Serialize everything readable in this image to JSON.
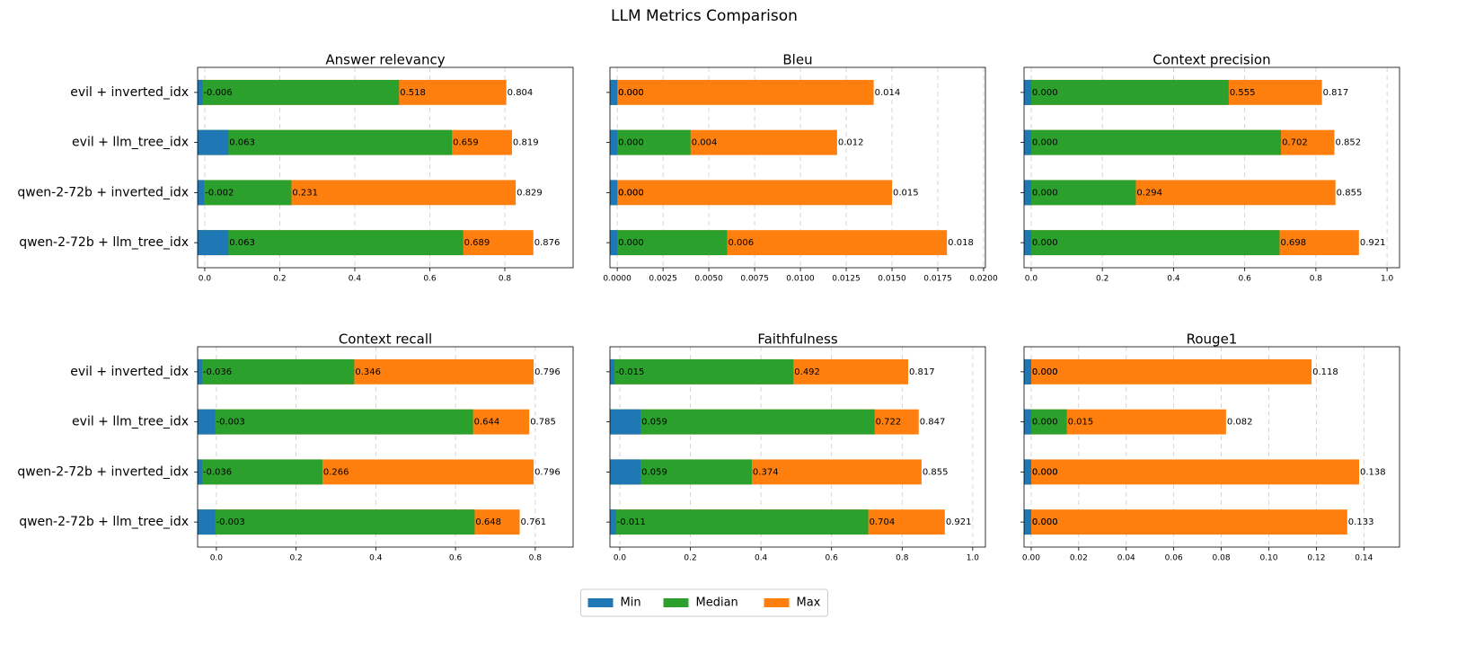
{
  "chart_data": {
    "type": "bar",
    "orientation": "horizontal",
    "title": "LLM Metrics Comparison",
    "categories": [
      "evil + inverted_idx",
      "evil + llm_tree_idx",
      "qwen-2-72b + inverted_idx",
      "qwen-2-72b + llm_tree_idx"
    ],
    "series": [
      {
        "name": "Min",
        "color": "#1f77b4"
      },
      {
        "name": "Median",
        "color": "#2ca02c"
      },
      {
        "name": "Max",
        "color": "#ff7f0e"
      }
    ],
    "legend": "lower center",
    "grid": true,
    "panels": [
      {
        "title": "Answer relevancy",
        "xlim": [
          -0.019,
          0.982
        ],
        "xticks": [
          {
            "value": 0,
            "label": "0.0"
          },
          0.2,
          0.4,
          0.6,
          0.8
        ],
        "series": [
          {
            "values": [
              -0.006,
              0.063,
              -0.002,
              0.063
            ]
          },
          {
            "values": [
              0.518,
              0.659,
              0.231,
              0.689
            ]
          },
          {
            "values": [
              0.804,
              0.819,
              0.829,
              0.876
            ]
          }
        ]
      },
      {
        "title": "Bleu",
        "xlim": [
          -0.0004,
          0.0201
        ],
        "xticks": [
          {
            "value": 0,
            "label": "0.0000"
          },
          {
            "value": 0.0025,
            "label": "0.0025"
          },
          {
            "value": 0.005,
            "label": "0.0050"
          },
          {
            "value": 0.0075,
            "label": "0.0075"
          },
          {
            "value": 0.01,
            "label": "0.0100"
          },
          {
            "value": 0.0125,
            "label": "0.0125"
          },
          {
            "value": 0.015,
            "label": "0.0150"
          },
          {
            "value": 0.0175,
            "label": "0.0175"
          },
          {
            "value": 0.02,
            "label": "0.0200"
          }
        ],
        "series": [
          {
            "values": [
              0,
              0,
              0,
              0
            ],
            "value_labels": [
              "0.000",
              "0.000",
              "0.000",
              "0.000"
            ]
          },
          {
            "values": [
              0,
              0.004,
              0,
              0.006
            ],
            "value_labels": [
              "0.000",
              "0.004",
              "0.000",
              "0.006"
            ]
          },
          {
            "values": [
              0.014,
              0.012,
              0.015,
              0.018
            ]
          }
        ]
      },
      {
        "title": "Context precision",
        "xlim": [
          -0.02,
          1.035
        ],
        "xticks": [
          {
            "value": 0,
            "label": "0.0"
          },
          0.2,
          0.4,
          0.6,
          0.8,
          {
            "value": 1,
            "label": "1.0"
          }
        ],
        "series": [
          {
            "values": [
              0,
              0,
              0,
              0
            ],
            "value_labels": [
              "0.000",
              "0.000",
              "0.000",
              "0.000"
            ]
          },
          {
            "values": [
              0.555,
              0.702,
              0.294,
              0.698
            ]
          },
          {
            "values": [
              0.817,
              0.852,
              0.855,
              0.921
            ]
          }
        ]
      },
      {
        "title": "Context recall",
        "xlim": [
          -0.047,
          0.895
        ],
        "xticks": [
          {
            "value": 0,
            "label": "0.0"
          },
          0.2,
          0.4,
          0.6,
          0.8
        ],
        "series": [
          {
            "values": [
              -0.036,
              -0.003,
              -0.036,
              -0.003
            ]
          },
          {
            "values": [
              0.346,
              0.644,
              0.266,
              0.648
            ]
          },
          {
            "values": [
              0.796,
              0.785,
              0.796,
              0.761
            ]
          }
        ]
      },
      {
        "title": "Faithfulness",
        "xlim": [
          -0.028,
          1.036
        ],
        "xticks": [
          {
            "value": 0,
            "label": "0.0"
          },
          0.2,
          0.4,
          0.6,
          0.8,
          {
            "value": 1,
            "label": "1.0"
          }
        ],
        "series": [
          {
            "values": [
              -0.015,
              0.059,
              0.059,
              -0.011
            ]
          },
          {
            "values": [
              0.492,
              0.722,
              0.374,
              0.704
            ]
          },
          {
            "values": [
              0.817,
              0.847,
              0.855,
              0.921
            ]
          }
        ]
      },
      {
        "title": "Rouge1",
        "xlim": [
          -0.003,
          0.155
        ],
        "xticks": [
          {
            "value": 0,
            "label": "0.00"
          },
          0.02,
          0.04,
          0.06,
          0.08,
          {
            "value": 0.1,
            "label": "0.10"
          },
          0.12,
          0.14
        ],
        "series": [
          {
            "values": [
              0,
              0,
              0,
              0
            ],
            "value_labels": [
              "0.000",
              "0.000",
              "0.000",
              "0.000"
            ]
          },
          {
            "values": [
              0,
              0.015,
              0,
              0
            ],
            "value_labels": [
              "0.000",
              "0.015",
              "0.000",
              "0.000"
            ]
          },
          {
            "values": [
              0.118,
              0.082,
              0.138,
              0.133
            ]
          }
        ]
      }
    ]
  }
}
